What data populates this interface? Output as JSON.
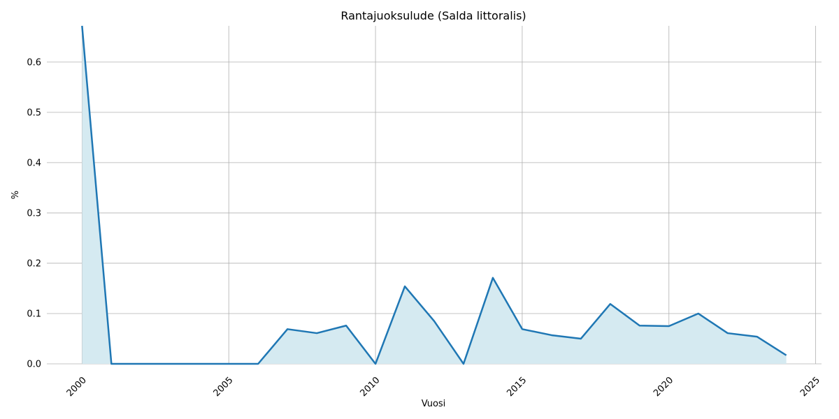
{
  "chart_data": {
    "type": "area",
    "title": "Rantajuoksulude (Salda littoralis)",
    "x_label": "Vuosi",
    "y_label": "%",
    "x": [
      2000,
      2001,
      2002,
      2003,
      2004,
      2005,
      2006,
      2007,
      2008,
      2009,
      2010,
      2011,
      2012,
      2013,
      2014,
      2015,
      2016,
      2017,
      2018,
      2019,
      2020,
      2021,
      2022,
      2023,
      2024
    ],
    "values": [
      0.672,
      0,
      0,
      0,
      0,
      0,
      0,
      0.069,
      0.061,
      0.076,
      0,
      0.154,
      0.085,
      0,
      0.171,
      0.069,
      0.057,
      0.05,
      0.119,
      0.076,
      0.075,
      0.1,
      0.061,
      0.054,
      0.017
    ],
    "color": "#1f77b4",
    "fill_color": "#d5eaf1",
    "xlim": [
      1998.8,
      2025.2
    ],
    "ylim": [
      0,
      0.672
    ],
    "xticks": [
      2000,
      2005,
      2010,
      2015,
      2020,
      2025
    ],
    "yticks": [
      {
        "value": 0,
        "label": "0.0"
      },
      0.1,
      0.2,
      0.3,
      0.4,
      0.5,
      0.6
    ],
    "grid": true
  }
}
